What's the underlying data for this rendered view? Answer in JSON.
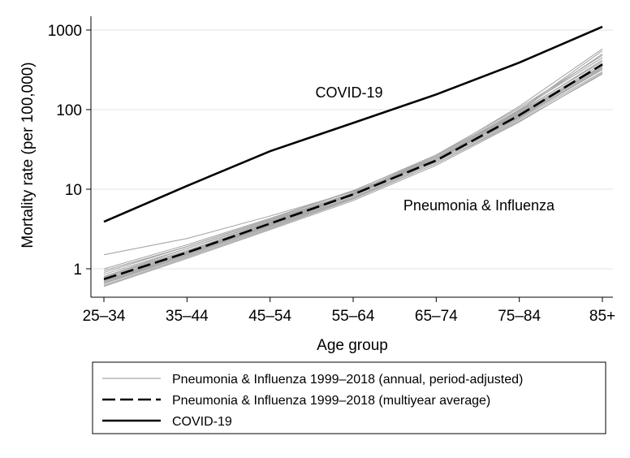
{
  "chart_data": {
    "type": "line",
    "title": "",
    "xlabel": "Age group",
    "ylabel": "Mortality rate (per 100,000)",
    "yscale": "log",
    "ylim": [
      0.5,
      1200
    ],
    "grid": "horizontal",
    "categories": [
      "25–34",
      "35–44",
      "45–54",
      "55–64",
      "65–74",
      "75–84",
      "85+"
    ],
    "yticks": [
      {
        "value": 1,
        "label": "1"
      },
      {
        "value": 10,
        "label": "10"
      },
      {
        "value": 100,
        "label": "100"
      },
      {
        "value": 1000,
        "label": "1000"
      }
    ],
    "series": [
      {
        "name": "COVID-19",
        "style": "solid",
        "color": "#000000",
        "values": [
          3.9,
          11,
          30,
          68,
          155,
          390,
          1100
        ]
      },
      {
        "name": "Pneumonia & Influenza 1999–2018 (multiyear average)",
        "style": "dashed",
        "color": "#000000",
        "values": [
          0.74,
          1.6,
          3.7,
          8.6,
          23,
          85,
          370
        ]
      },
      {
        "name": "Pneumonia & Influenza 1999–2018 (annual, period-adjusted)",
        "style": "thin",
        "color": "#a8a8a8",
        "annual": [
          [
            1.5,
            2.4,
            4.6,
            9.3,
            24,
            82,
            320
          ],
          [
            1.0,
            2.0,
            4.3,
            9.6,
            26,
            95,
            400
          ],
          [
            0.95,
            1.9,
            4.1,
            9.0,
            25,
            90,
            380
          ],
          [
            0.85,
            1.8,
            3.9,
            8.8,
            24,
            88,
            360
          ],
          [
            0.8,
            1.7,
            3.8,
            8.5,
            23,
            86,
            350
          ],
          [
            0.75,
            1.6,
            3.6,
            8.3,
            23,
            84,
            340
          ],
          [
            0.7,
            1.55,
            3.5,
            8.0,
            22,
            80,
            330
          ],
          [
            0.68,
            1.5,
            3.4,
            7.8,
            22,
            78,
            320
          ],
          [
            0.65,
            1.45,
            3.3,
            7.6,
            21,
            75,
            300
          ],
          [
            0.6,
            1.35,
            3.1,
            7.2,
            20,
            70,
            290
          ],
          [
            0.62,
            1.4,
            3.2,
            7.5,
            21,
            72,
            280
          ],
          [
            0.8,
            1.8,
            4.0,
            9.0,
            26,
            100,
            450
          ],
          [
            0.9,
            1.9,
            4.2,
            9.5,
            27,
            105,
            480
          ],
          [
            0.72,
            1.6,
            3.7,
            8.7,
            25,
            92,
            420
          ],
          [
            0.7,
            1.55,
            3.6,
            8.6,
            24,
            96,
            500
          ],
          [
            0.66,
            1.5,
            3.5,
            8.4,
            24,
            98,
            550
          ],
          [
            0.78,
            1.65,
            3.8,
            8.9,
            26,
            110,
            580
          ]
        ]
      }
    ],
    "annotations": [
      {
        "text": "COVID-19",
        "near_series": "COVID-19"
      },
      {
        "text": "Pneumonia & Influenza",
        "near_series": "Pneumonia & Influenza"
      }
    ],
    "legend": {
      "position": "bottom",
      "entries": [
        {
          "label": "Pneumonia & Influenza 1999–2018 (annual, period-adjusted)",
          "style": "thin"
        },
        {
          "label": "Pneumonia & Influenza 1999–2018 (multiyear average)",
          "style": "dashed"
        },
        {
          "label": "COVID-19",
          "style": "solid"
        }
      ]
    }
  }
}
